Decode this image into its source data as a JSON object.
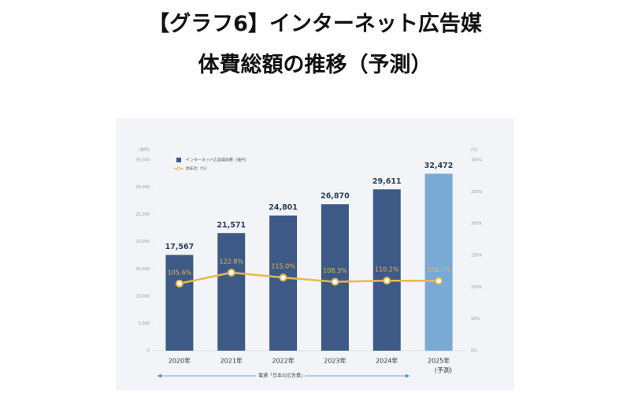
{
  "chart_data": {
    "type": "bar",
    "title": [
      "【グラフ6】インターネット広告媒",
      "体費総額の推移（予測）"
    ],
    "y_unit": "(億円)",
    "y2_unit": "(%)",
    "categories": [
      "2020年",
      "2021年",
      "2022年",
      "2023年",
      "2024年",
      "2025年"
    ],
    "forecast_note": "(予測)",
    "source": "電通「日本の広告費」",
    "ylim": [
      0,
      35000
    ],
    "yticks": [
      0,
      {
        "value": 5000,
        "label": "5,000"
      },
      {
        "value": 10000,
        "label": "10,000"
      },
      {
        "value": 15000,
        "label": "15,000"
      },
      {
        "value": 20000,
        "label": "20,000"
      },
      {
        "value": 25000,
        "label": "25,000"
      },
      {
        "value": 30000,
        "label": "30,000"
      },
      {
        "value": 35000,
        "label": "35,000"
      }
    ],
    "y2lim": [
      0,
      300
    ],
    "y2ticks": [
      {
        "value": 0,
        "label": "0%"
      },
      {
        "value": 50,
        "label": "50%"
      },
      {
        "value": 100,
        "label": "100%"
      },
      {
        "value": 150,
        "label": "150%"
      },
      {
        "value": 200,
        "label": "200%"
      },
      {
        "value": 250,
        "label": "250%"
      },
      {
        "value": 300,
        "label": "300%"
      }
    ],
    "series": [
      {
        "name": "インターネット広告媒体費（億円）",
        "type": "bar",
        "color": "#3d5a87",
        "colors": [
          "#3d5a87",
          "#3d5a87",
          "#3d5a87",
          "#3d5a87",
          "#3d5a87",
          "#7aa9d6"
        ],
        "values": [
          17567,
          21571,
          24801,
          26870,
          29611,
          32472
        ],
        "value_labels": [
          "17,567",
          "21,571",
          "24,801",
          "26,870",
          "29,611",
          "32,472"
        ]
      },
      {
        "name": "前年比（%）",
        "type": "line",
        "axis": "y2",
        "color": "#e8b84f",
        "values": [
          105.6,
          122.8,
          115.0,
          108.3,
          110.2,
          109.7
        ],
        "value_labels": [
          "105.6%",
          "122.8%",
          "115.0%",
          "108.3%",
          "110.2%",
          "109.7%"
        ]
      }
    ]
  }
}
